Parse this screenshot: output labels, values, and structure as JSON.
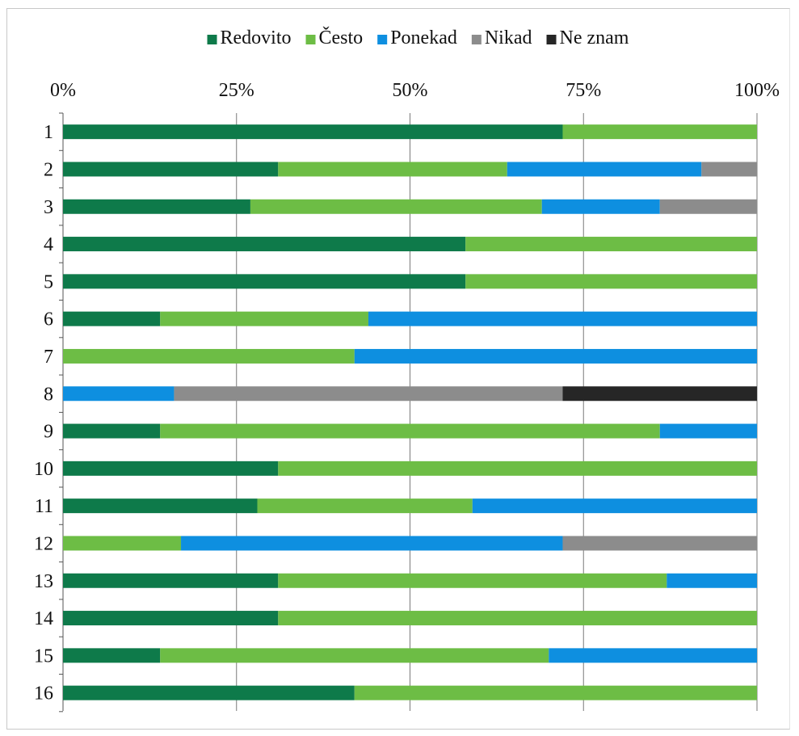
{
  "chart_data": {
    "type": "bar",
    "orientation": "horizontal",
    "stacked": true,
    "percent_stacked": true,
    "title": "",
    "xlabel": "",
    "ylabel": "",
    "xlim": [
      0,
      100
    ],
    "x_ticks": [
      "0%",
      "25%",
      "50%",
      "75%",
      "100%"
    ],
    "grid": "vertical major gridlines",
    "legend_position": "top",
    "categories": [
      "1",
      "2",
      "3",
      "4",
      "5",
      "6",
      "7",
      "8",
      "9",
      "10",
      "11",
      "12",
      "13",
      "14",
      "15",
      "16"
    ],
    "series": [
      {
        "name": "Redovito",
        "color": "#0e7a4a",
        "values": [
          72,
          31,
          27,
          58,
          58,
          14,
          0,
          0,
          14,
          31,
          28,
          0,
          31,
          31,
          14,
          42
        ]
      },
      {
        "name": "Često",
        "color": "#6dbd45",
        "values": [
          28,
          33,
          42,
          42,
          42,
          30,
          42,
          0,
          72,
          69,
          31,
          17,
          56,
          69,
          56,
          58
        ]
      },
      {
        "name": "Ponekad",
        "color": "#0e8fe0",
        "values": [
          0,
          28,
          17,
          0,
          0,
          56,
          58,
          16,
          14,
          0,
          41,
          55,
          13,
          0,
          30,
          0
        ]
      },
      {
        "name": "Nikad",
        "color": "#8c8c8c",
        "values": [
          0,
          8,
          14,
          0,
          0,
          0,
          0,
          56,
          0,
          0,
          0,
          28,
          0,
          0,
          0,
          0
        ]
      },
      {
        "name": "Ne znam",
        "color": "#262626",
        "values": [
          0,
          0,
          0,
          0,
          0,
          0,
          0,
          28,
          0,
          0,
          0,
          0,
          0,
          0,
          0,
          0
        ]
      }
    ]
  }
}
